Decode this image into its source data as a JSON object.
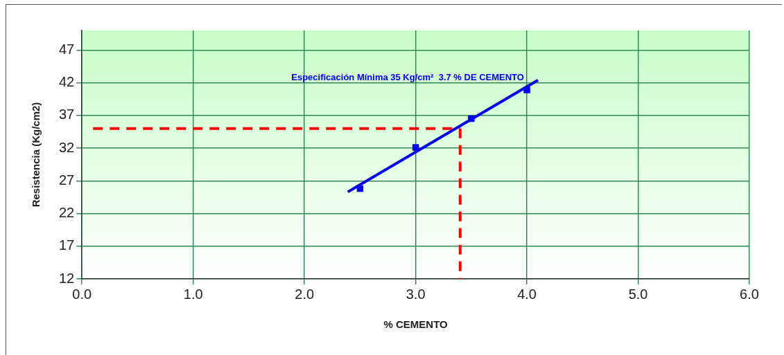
{
  "chart_data": {
    "type": "scatter",
    "xlabel": "% CEMENTO",
    "ylabel": "Resistencia (Kg/cm2)",
    "xlim": [
      0,
      6
    ],
    "xticks": [
      {
        "value": 0,
        "label": "0.0"
      },
      {
        "value": 1,
        "label": "1.0"
      },
      {
        "value": 2,
        "label": "2.0"
      },
      {
        "value": 3,
        "label": "3.0"
      },
      {
        "value": 4,
        "label": "4.0"
      },
      {
        "value": 5,
        "label": "5.0"
      },
      {
        "value": 6,
        "label": "6.0"
      }
    ],
    "ylim": [
      12,
      50
    ],
    "yticks": [
      12,
      17,
      22,
      27,
      32,
      37,
      42,
      47
    ],
    "grid": true,
    "legend": false,
    "annotations": [
      "Especificación Mínima 35 Kg/cm²  3.7 % DE CEMENTO"
    ],
    "series": [
      {
        "type": "line",
        "color": "#0000ff",
        "x": [
          2.39,
          4.1
        ],
        "values": [
          25.3,
          42.4
        ],
        "marker": "none",
        "line_style": "solid"
      },
      {
        "color": "#0000ff",
        "x": [
          2.5,
          3.0,
          3.5,
          4.0
        ],
        "values": [
          25.8,
          32.1,
          36.5,
          40.9
        ],
        "marker": "square"
      },
      {
        "type": "line",
        "color": "#ff0000",
        "x": [
          0.1,
          3.4
        ],
        "values": [
          35,
          35
        ],
        "marker": "none",
        "line_style": "dashed"
      },
      {
        "type": "line",
        "color": "#ff0000",
        "x": [
          3.4,
          3.4
        ],
        "values": [
          35,
          12
        ],
        "marker": "none",
        "line_style": "dashed"
      }
    ]
  }
}
